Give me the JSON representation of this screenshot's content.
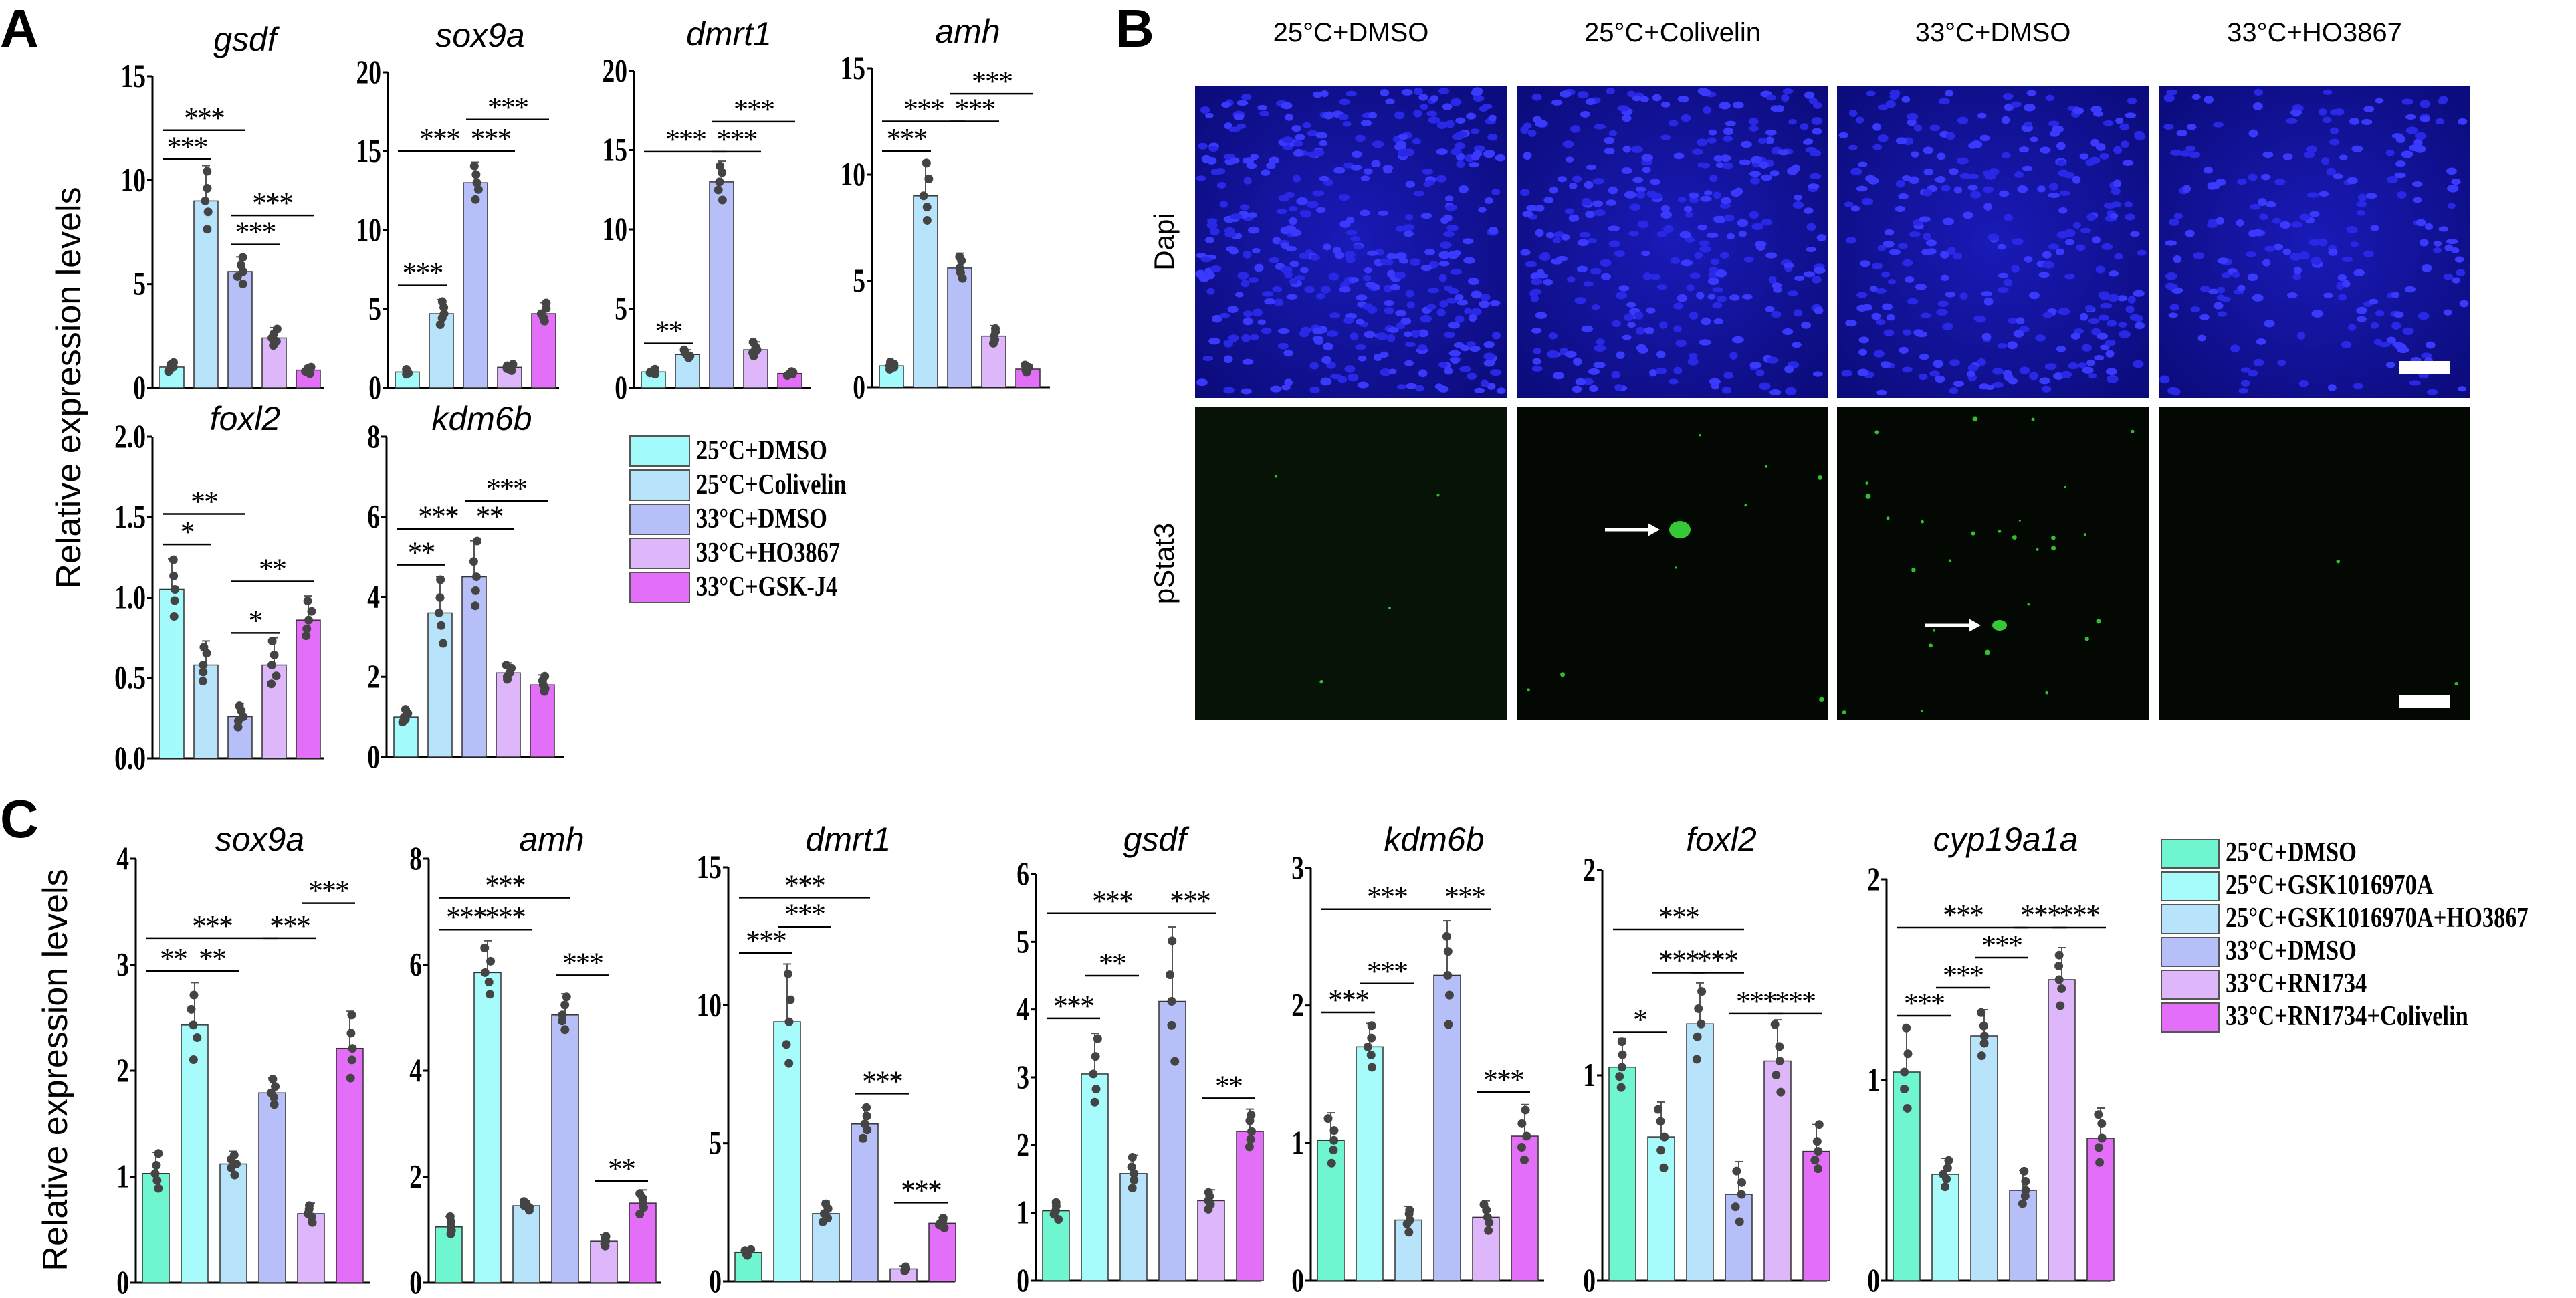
{
  "panel_labels": {
    "a": "A",
    "b": "B",
    "c": "C"
  },
  "y_axis_label": "Relative expression levels",
  "legend_a": [
    {
      "label": "25°C+DMSO",
      "color": "#a3fbfb"
    },
    {
      "label": "25°C+Colivelin",
      "color": "#b7e3fb"
    },
    {
      "label": "33°C+DMSO",
      "color": "#b7bff9"
    },
    {
      "label": "33°C+HO3867",
      "color": "#ddb7f9"
    },
    {
      "label": "33°C+GSK-J4",
      "color": "#e36ef7"
    }
  ],
  "legend_c": [
    {
      "label": "25°C+DMSO",
      "color": "#6ff5cf"
    },
    {
      "label": "25°C+GSK1016970A",
      "color": "#a7fbfb"
    },
    {
      "label": "25°C+GSK1016970A+HO3867",
      "color": "#b7e3fb"
    },
    {
      "label": "33°C+DMSO",
      "color": "#b7bff9"
    },
    {
      "label": "33°C+RN1734",
      "color": "#ddb7f9"
    },
    {
      "label": "33°C+RN1734+Colivelin",
      "color": "#e36ef7"
    }
  ],
  "microscopy": {
    "columns": [
      "25°C+DMSO",
      "25°C+Colivelin",
      "33°C+DMSO",
      "33°C+HO3867"
    ],
    "rows": [
      "Dapi",
      "pStat3"
    ]
  },
  "chart_data": [
    {
      "panel": "A",
      "type": "bar",
      "title": "gsdf",
      "ylim": [
        0,
        15
      ],
      "yticks": [
        "0",
        "5",
        "10",
        "15"
      ],
      "values": [
        1.0,
        9.0,
        5.6,
        2.4,
        0.85
      ],
      "err": [
        0.25,
        1.7,
        0.7,
        0.5,
        0.2
      ],
      "significance": [
        {
          "from": 0,
          "to": 2,
          "y": 12.4,
          "label": "***"
        },
        {
          "from": 0,
          "to": 1,
          "y": 11.0,
          "label": "***"
        },
        {
          "from": 2,
          "to": 4,
          "y": 8.3,
          "label": "***"
        },
        {
          "from": 2,
          "to": 3,
          "y": 6.9,
          "label": "***"
        }
      ]
    },
    {
      "panel": "A",
      "type": "bar",
      "title": "sox9a",
      "ylim": [
        0,
        20
      ],
      "yticks": [
        "0",
        "5",
        "10",
        "15",
        "20"
      ],
      "values": [
        1.0,
        4.7,
        13.0,
        1.3,
        4.7
      ],
      "err": [
        0.2,
        0.9,
        1.3,
        0.25,
        0.7
      ],
      "significance": [
        {
          "from": 0,
          "to": 1,
          "y": 6.5,
          "label": "***"
        },
        {
          "from": 0,
          "to": 2,
          "y": 15.0,
          "label": "***"
        },
        {
          "from": 2,
          "to": 3,
          "y": 15.0,
          "label": "***"
        },
        {
          "from": 2,
          "to": 4,
          "y": 17.0,
          "label": "***"
        }
      ]
    },
    {
      "panel": "A",
      "type": "bar",
      "title": "dmrt1",
      "ylim": [
        0,
        20
      ],
      "yticks": [
        "0",
        "5",
        "10",
        "15",
        "20"
      ],
      "values": [
        1.0,
        2.1,
        13.0,
        2.4,
        0.9
      ],
      "err": [
        0.2,
        0.3,
        1.3,
        0.5,
        0.15
      ],
      "significance": [
        {
          "from": 0,
          "to": 1,
          "y": 2.8,
          "label": "**"
        },
        {
          "from": 0,
          "to": 2,
          "y": 14.9,
          "label": "***"
        },
        {
          "from": 2,
          "to": 3,
          "y": 14.9,
          "label": "***"
        },
        {
          "from": 2,
          "to": 4,
          "y": 16.8,
          "label": "***"
        }
      ]
    },
    {
      "panel": "A",
      "type": "bar",
      "title": "amh",
      "ylim": [
        0,
        15
      ],
      "yticks": [
        "0",
        "5",
        "10",
        "15"
      ],
      "values": [
        1.0,
        9.0,
        5.6,
        2.4,
        0.85
      ],
      "err": [
        0.2,
        1.6,
        0.7,
        0.5,
        0.2
      ],
      "significance": [
        {
          "from": 0,
          "to": 1,
          "y": 11.1,
          "label": "***"
        },
        {
          "from": 0,
          "to": 2,
          "y": 12.5,
          "label": "***"
        },
        {
          "from": 2,
          "to": 3,
          "y": 12.5,
          "label": "***"
        },
        {
          "from": 2,
          "to": 4,
          "y": 13.8,
          "label": "***"
        }
      ]
    },
    {
      "panel": "A",
      "type": "bar",
      "title": "foxl2",
      "ylim": [
        0,
        2
      ],
      "yticks": [
        "0.0",
        "0.5",
        "1.0",
        "1.5",
        "2.0"
      ],
      "values": [
        1.05,
        0.58,
        0.26,
        0.58,
        0.86
      ],
      "err": [
        0.19,
        0.15,
        0.08,
        0.17,
        0.15
      ],
      "significance": [
        {
          "from": 0,
          "to": 1,
          "y": 1.33,
          "label": "*"
        },
        {
          "from": 0,
          "to": 2,
          "y": 1.52,
          "label": "**"
        },
        {
          "from": 2,
          "to": 3,
          "y": 0.78,
          "label": "*"
        },
        {
          "from": 2,
          "to": 4,
          "y": 1.1,
          "label": "**"
        }
      ]
    },
    {
      "panel": "A",
      "type": "bar",
      "title": "kdm6b",
      "ylim": [
        0,
        8
      ],
      "yticks": [
        "0",
        "2",
        "4",
        "6",
        "8"
      ],
      "values": [
        1.0,
        3.6,
        4.5,
        2.1,
        1.8
      ],
      "err": [
        0.2,
        0.9,
        0.9,
        0.25,
        0.25
      ],
      "significance": [
        {
          "from": 0,
          "to": 1,
          "y": 4.8,
          "label": "**"
        },
        {
          "from": 0,
          "to": 2,
          "y": 5.7,
          "label": "***"
        },
        {
          "from": 2,
          "to": 3,
          "y": 5.7,
          "label": "**"
        },
        {
          "from": 2,
          "to": 4,
          "y": 6.4,
          "label": "***"
        }
      ]
    },
    {
      "panel": "C",
      "type": "bar",
      "title": "sox9a",
      "ylim": [
        0,
        4
      ],
      "yticks": [
        "0",
        "1",
        "2",
        "3",
        "4"
      ],
      "values": [
        1.03,
        2.43,
        1.12,
        1.79,
        0.65,
        2.21
      ],
      "err": [
        0.2,
        0.4,
        0.12,
        0.14,
        0.1,
        0.35
      ],
      "significance": [
        {
          "from": 0,
          "to": 1,
          "y": 2.94,
          "label": "**"
        },
        {
          "from": 1,
          "to": 2,
          "y": 2.94,
          "label": "**"
        },
        {
          "from": 0,
          "to": 3,
          "y": 3.25,
          "label": "***"
        },
        {
          "from": 3,
          "to": 4,
          "y": 3.25,
          "label": "***"
        },
        {
          "from": 4,
          "to": 5,
          "y": 3.58,
          "label": "***"
        }
      ]
    },
    {
      "panel": "C",
      "type": "bar",
      "title": "amh",
      "ylim": [
        0,
        8
      ],
      "yticks": [
        "0",
        "2",
        "4",
        "6",
        "8"
      ],
      "values": [
        1.05,
        5.85,
        1.45,
        5.05,
        0.78,
        1.5
      ],
      "err": [
        0.2,
        0.6,
        0.1,
        0.4,
        0.12,
        0.25
      ],
      "significance": [
        {
          "from": 0,
          "to": 1,
          "y": 6.66,
          "label": "***"
        },
        {
          "from": 1,
          "to": 2,
          "y": 6.66,
          "label": "***"
        },
        {
          "from": 0,
          "to": 3,
          "y": 7.26,
          "label": "***"
        },
        {
          "from": 3,
          "to": 4,
          "y": 5.8,
          "label": "***"
        },
        {
          "from": 4,
          "to": 5,
          "y": 1.92,
          "label": "**"
        }
      ]
    },
    {
      "panel": "C",
      "type": "bar",
      "title": "dmrt1",
      "ylim": [
        0,
        15
      ],
      "yticks": [
        "0",
        "5",
        "10",
        "15"
      ],
      "values": [
        1.05,
        9.4,
        2.45,
        5.7,
        0.45,
        2.1
      ],
      "err": [
        0.15,
        2.1,
        0.45,
        0.6,
        0.1,
        0.2
      ],
      "significance": [
        {
          "from": 0,
          "to": 1,
          "y": 11.9,
          "label": "***"
        },
        {
          "from": 1,
          "to": 2,
          "y": 12.85,
          "label": "***"
        },
        {
          "from": 0,
          "to": 3,
          "y": 13.9,
          "label": "***"
        },
        {
          "from": 3,
          "to": 4,
          "y": 6.8,
          "label": "***"
        },
        {
          "from": 4,
          "to": 5,
          "y": 2.85,
          "label": "***"
        }
      ]
    },
    {
      "panel": "C",
      "type": "bar",
      "title": "gsdf",
      "ylim": [
        0,
        6
      ],
      "yticks": [
        "0",
        "1",
        "2",
        "3",
        "4",
        "5",
        "6"
      ],
      "values": [
        1.03,
        3.05,
        1.58,
        4.12,
        1.18,
        2.2
      ],
      "err": [
        0.15,
        0.6,
        0.27,
        1.1,
        0.16,
        0.33
      ],
      "significance": [
        {
          "from": 0,
          "to": 1,
          "y": 3.87,
          "label": "***"
        },
        {
          "from": 1,
          "to": 2,
          "y": 4.5,
          "label": "**"
        },
        {
          "from": 0,
          "to": 3,
          "y": 5.42,
          "label": "***"
        },
        {
          "from": 3,
          "to": 4,
          "y": 5.42,
          "label": "***"
        },
        {
          "from": 4,
          "to": 5,
          "y": 2.69,
          "label": "**"
        }
      ]
    },
    {
      "panel": "C",
      "type": "bar",
      "title": "kdm6b",
      "ylim": [
        0,
        3
      ],
      "yticks": [
        "0",
        "1",
        "2",
        "3"
      ],
      "values": [
        1.02,
        1.7,
        0.44,
        2.22,
        0.46,
        1.05
      ],
      "err": [
        0.2,
        0.17,
        0.1,
        0.4,
        0.12,
        0.23
      ],
      "significance": [
        {
          "from": 0,
          "to": 1,
          "y": 1.95,
          "label": "***"
        },
        {
          "from": 1,
          "to": 2,
          "y": 2.16,
          "label": "***"
        },
        {
          "from": 0,
          "to": 3,
          "y": 2.7,
          "label": "***"
        },
        {
          "from": 3,
          "to": 4,
          "y": 2.7,
          "label": "***"
        },
        {
          "from": 4,
          "to": 5,
          "y": 1.37,
          "label": "***"
        }
      ]
    },
    {
      "panel": "C",
      "type": "bar",
      "title": "foxl2",
      "ylim": [
        0,
        2
      ],
      "yticks": [
        "0",
        "1",
        "2"
      ],
      "values": [
        1.04,
        0.7,
        1.25,
        0.42,
        1.07,
        0.63
      ],
      "err": [
        0.14,
        0.17,
        0.2,
        0.16,
        0.2,
        0.13
      ],
      "significance": [
        {
          "from": 0,
          "to": 1,
          "y": 1.21,
          "label": "*"
        },
        {
          "from": 0,
          "to": 3,
          "y": 1.71,
          "label": "***"
        },
        {
          "from": 1,
          "to": 2,
          "y": 1.5,
          "label": "***"
        },
        {
          "from": 2,
          "to": 3,
          "y": 1.5,
          "label": "***"
        },
        {
          "from": 3,
          "to": 4,
          "y": 1.3,
          "label": "***"
        },
        {
          "from": 4,
          "to": 5,
          "y": 1.3,
          "label": "***"
        }
      ]
    },
    {
      "panel": "C",
      "type": "bar",
      "title": "cyp19a1a",
      "ylim": [
        0,
        2
      ],
      "yticks": [
        "0",
        "1",
        "2"
      ],
      "values": [
        1.04,
        0.53,
        1.22,
        0.45,
        1.5,
        0.71
      ],
      "err": [
        0.22,
        0.08,
        0.13,
        0.1,
        0.16,
        0.15
      ],
      "significance": [
        {
          "from": 0,
          "to": 1,
          "y": 1.32,
          "label": "***"
        },
        {
          "from": 1,
          "to": 2,
          "y": 1.46,
          "label": "***"
        },
        {
          "from": 2,
          "to": 3,
          "y": 1.61,
          "label": "***"
        },
        {
          "from": 0,
          "to": 3,
          "y": 1.76,
          "label": "***"
        },
        {
          "from": 3,
          "to": 4,
          "y": 1.76,
          "label": "***"
        },
        {
          "from": 4,
          "to": 5,
          "y": 1.76,
          "label": "***"
        }
      ]
    }
  ]
}
